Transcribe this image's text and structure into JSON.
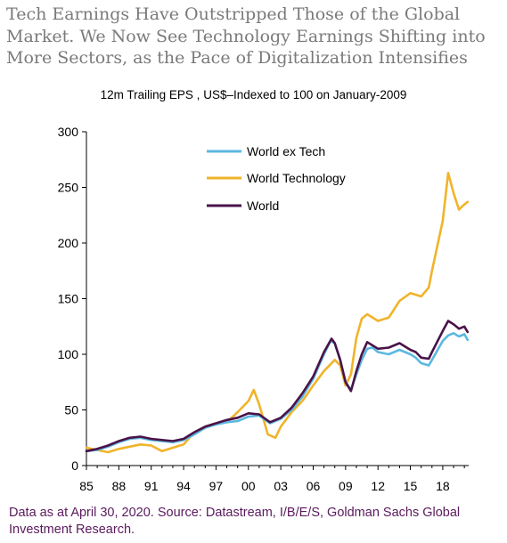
{
  "header": {
    "title": "Tech Earnings Have Outstripped Those of the Global Market. We Now See Technology Earnings Shifting into More Sectors, as the Pace of Digitalization Intensifies"
  },
  "footnote": "Data as at April 30, 2020. Source: Datastream, I/B/E/S, Goldman Sachs Global Investment Research.",
  "chart_data": {
    "type": "line",
    "title": "12m Trailing EPS , US$–Indexed to 100 on January-2009",
    "xlabel": "",
    "ylabel": "",
    "xlim": [
      1985,
      2020.4
    ],
    "ylim": [
      0,
      300
    ],
    "x_tick_labels": [
      "85",
      "88",
      "91",
      "94",
      "97",
      "00",
      "03",
      "06",
      "09",
      "12",
      "15",
      "18"
    ],
    "x_tick_values": [
      1985,
      1988,
      1991,
      1994,
      1997,
      2000,
      2003,
      2006,
      2009,
      2012,
      2015,
      2018
    ],
    "y_tick_values": [
      0,
      50,
      100,
      150,
      200,
      250,
      300
    ],
    "grid": false,
    "legend_position": "top-center",
    "series": [
      {
        "name": "World ex Tech",
        "color": "#5bb8e0",
        "points": [
          [
            1985,
            13
          ],
          [
            1986,
            14
          ],
          [
            1987,
            17
          ],
          [
            1988,
            21
          ],
          [
            1989,
            24
          ],
          [
            1990,
            25
          ],
          [
            1991,
            23
          ],
          [
            1992,
            22
          ],
          [
            1993,
            21
          ],
          [
            1994,
            23
          ],
          [
            1995,
            28
          ],
          [
            1996,
            34
          ],
          [
            1997,
            37
          ],
          [
            1998,
            39
          ],
          [
            1999,
            40
          ],
          [
            2000,
            44
          ],
          [
            2001,
            45
          ],
          [
            2002,
            38
          ],
          [
            2003,
            42
          ],
          [
            2004,
            50
          ],
          [
            2005,
            62
          ],
          [
            2006,
            78
          ],
          [
            2007,
            100
          ],
          [
            2007.6,
            112
          ],
          [
            2008,
            110
          ],
          [
            2008.5,
            95
          ],
          [
            2009,
            75
          ],
          [
            2009.5,
            68
          ],
          [
            2010,
            82
          ],
          [
            2010.5,
            95
          ],
          [
            2011,
            105
          ],
          [
            2011.5,
            106
          ],
          [
            2012,
            102
          ],
          [
            2013,
            100
          ],
          [
            2014,
            104
          ],
          [
            2015,
            100
          ],
          [
            2015.5,
            97
          ],
          [
            2016,
            92
          ],
          [
            2016.7,
            90
          ],
          [
            2017,
            95
          ],
          [
            2018,
            112
          ],
          [
            2018.5,
            117
          ],
          [
            2019,
            119
          ],
          [
            2019.5,
            116
          ],
          [
            2020,
            118
          ],
          [
            2020.3,
            113
          ]
        ]
      },
      {
        "name": "World Technology",
        "color": "#f0b429",
        "points": [
          [
            1985,
            16
          ],
          [
            1986,
            14
          ],
          [
            1987,
            12
          ],
          [
            1988,
            15
          ],
          [
            1989,
            17
          ],
          [
            1990,
            19
          ],
          [
            1991,
            18
          ],
          [
            1992,
            13
          ],
          [
            1993,
            16
          ],
          [
            1994,
            19
          ],
          [
            1995,
            30
          ],
          [
            1996,
            35
          ],
          [
            1997,
            38
          ],
          [
            1998,
            39
          ],
          [
            1999,
            48
          ],
          [
            2000,
            58
          ],
          [
            2000.5,
            68
          ],
          [
            2001,
            55
          ],
          [
            2001.8,
            28
          ],
          [
            2002.5,
            25
          ],
          [
            2003,
            35
          ],
          [
            2004,
            48
          ],
          [
            2005,
            58
          ],
          [
            2006,
            72
          ],
          [
            2007,
            85
          ],
          [
            2008,
            95
          ],
          [
            2008.5,
            90
          ],
          [
            2009,
            72
          ],
          [
            2009.5,
            82
          ],
          [
            2010,
            115
          ],
          [
            2010.5,
            132
          ],
          [
            2011,
            136
          ],
          [
            2012,
            130
          ],
          [
            2013,
            133
          ],
          [
            2014,
            148
          ],
          [
            2015,
            155
          ],
          [
            2016,
            152
          ],
          [
            2016.7,
            160
          ],
          [
            2017,
            175
          ],
          [
            2018,
            220
          ],
          [
            2018.5,
            263
          ],
          [
            2019,
            245
          ],
          [
            2019.5,
            230
          ],
          [
            2019.8,
            233
          ],
          [
            2020.3,
            237
          ]
        ]
      },
      {
        "name": "World",
        "color": "#4a1348",
        "points": [
          [
            1985,
            13
          ],
          [
            1986,
            15
          ],
          [
            1987,
            18
          ],
          [
            1988,
            22
          ],
          [
            1989,
            25
          ],
          [
            1990,
            26
          ],
          [
            1991,
            24
          ],
          [
            1992,
            23
          ],
          [
            1993,
            22
          ],
          [
            1994,
            24
          ],
          [
            1995,
            30
          ],
          [
            1996,
            35
          ],
          [
            1997,
            38
          ],
          [
            1998,
            41
          ],
          [
            1999,
            43
          ],
          [
            2000,
            47
          ],
          [
            2001,
            46
          ],
          [
            2002,
            39
          ],
          [
            2003,
            43
          ],
          [
            2004,
            52
          ],
          [
            2005,
            65
          ],
          [
            2006,
            80
          ],
          [
            2007,
            102
          ],
          [
            2007.7,
            114
          ],
          [
            2008,
            110
          ],
          [
            2008.5,
            95
          ],
          [
            2009,
            75
          ],
          [
            2009.5,
            67
          ],
          [
            2010,
            85
          ],
          [
            2010.5,
            100
          ],
          [
            2011,
            111
          ],
          [
            2011.5,
            108
          ],
          [
            2012,
            105
          ],
          [
            2013,
            106
          ],
          [
            2014,
            110
          ],
          [
            2015,
            104
          ],
          [
            2015.5,
            102
          ],
          [
            2016,
            97
          ],
          [
            2016.7,
            96
          ],
          [
            2017,
            102
          ],
          [
            2018,
            121
          ],
          [
            2018.5,
            130
          ],
          [
            2019,
            127
          ],
          [
            2019.5,
            123
          ],
          [
            2020,
            125
          ],
          [
            2020.3,
            120
          ]
        ]
      }
    ]
  }
}
